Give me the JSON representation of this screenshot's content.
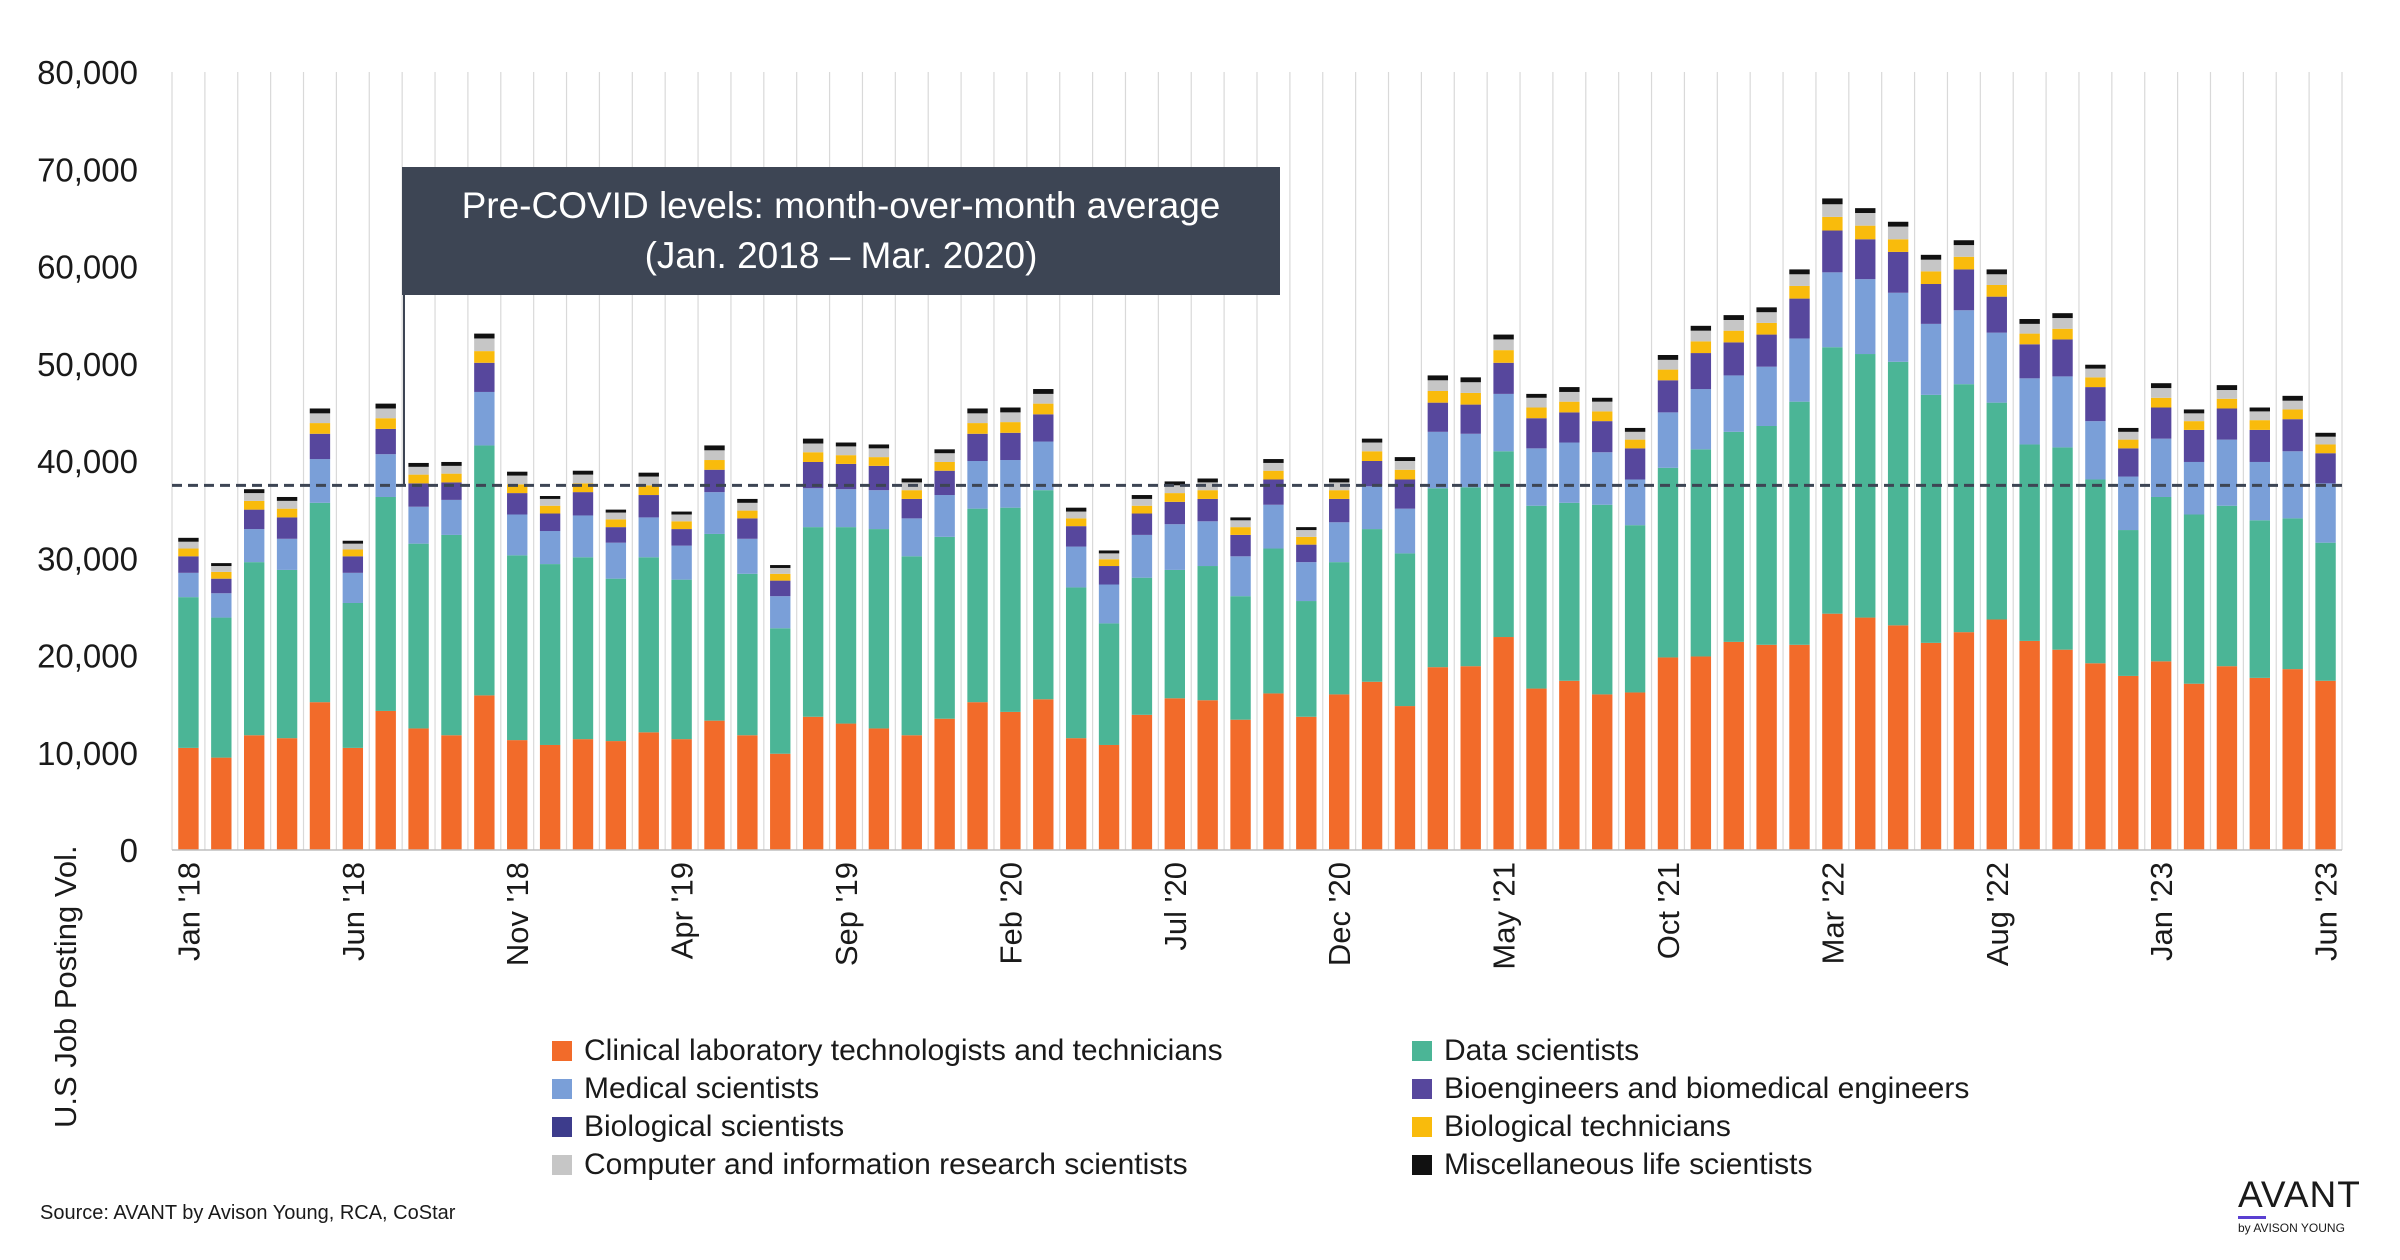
{
  "chart_data": {
    "type": "bar",
    "stacked": true,
    "ylabel": "U.S Job Posting Vol.",
    "ylim": [
      0,
      80000
    ],
    "yticks": [
      "0",
      "10,000",
      "20,000",
      "30,000",
      "40,000",
      "50,000",
      "60,000",
      "70,000",
      "80,000"
    ],
    "grid": "vertical",
    "legend_position": "bottom",
    "categories": [
      "Jan '18",
      "Feb '18",
      "Mar '18",
      "Apr '18",
      "May '18",
      "Jun '18",
      "Jul '18",
      "Aug '18",
      "Sep '18",
      "Oct '18",
      "Nov '18",
      "Dec '18",
      "Jan '19",
      "Feb '19",
      "Mar '19",
      "Apr '19",
      "May '19",
      "Jun '19",
      "Jul '19",
      "Aug '19",
      "Sep '19",
      "Oct '19",
      "Nov '19",
      "Dec '19",
      "Jan '20",
      "Feb '20",
      "Mar '20",
      "Apr '20",
      "May '20",
      "Jun '20",
      "Jul '20",
      "Aug '20",
      "Sep '20",
      "Oct '20",
      "Nov '20",
      "Dec '20",
      "Jan '21",
      "Feb '21",
      "Mar '21",
      "Apr '21",
      "May '21",
      "Jun '21",
      "Jul '21",
      "Aug '21",
      "Sep '21",
      "Oct '21",
      "Nov '21",
      "Dec '21",
      "Jan '22",
      "Feb '22",
      "Mar '22",
      "Apr '22",
      "May '22",
      "Jun '22",
      "Jul '22",
      "Aug '22",
      "Sep '22",
      "Oct '22",
      "Nov '22",
      "Dec '22",
      "Jan '23",
      "Feb '23",
      "Mar '23",
      "Apr '23",
      "May '23",
      "Jun '23"
    ],
    "tick_labels": [
      {
        "index": 0,
        "label": "Jan '18"
      },
      {
        "index": 5,
        "label": "Jun '18"
      },
      {
        "index": 10,
        "label": "Nov '18"
      },
      {
        "index": 15,
        "label": "Apr '19"
      },
      {
        "index": 20,
        "label": "Sep '19"
      },
      {
        "index": 25,
        "label": "Feb '20"
      },
      {
        "index": 30,
        "label": "Jul '20"
      },
      {
        "index": 35,
        "label": "Dec '20"
      },
      {
        "index": 40,
        "label": "May '21"
      },
      {
        "index": 45,
        "label": "Oct '21"
      },
      {
        "index": 50,
        "label": "Mar '22"
      },
      {
        "index": 55,
        "label": "Aug '22"
      },
      {
        "index": 60,
        "label": "Jan '23"
      },
      {
        "index": 65,
        "label": "Jun '23"
      }
    ],
    "reference_line": {
      "value": 37500
    },
    "annotation": {
      "lines": [
        "Pre-COVID levels: month-over-month average",
        "(Jan. 2018 – Mar. 2020)"
      ]
    },
    "series": [
      {
        "name": "Clinical laboratory technologists and technicians",
        "color": "#f26b2a",
        "values": [
          10500,
          9500,
          11800,
          11500,
          15200,
          10500,
          14300,
          12500,
          11800,
          15900,
          11300,
          10800,
          11400,
          11200,
          12100,
          11400,
          13300,
          11800,
          9900,
          13700,
          13000,
          12500,
          11800,
          13500,
          15200,
          14200,
          15500,
          11500,
          10800,
          13900,
          15600,
          15400,
          13400,
          16100,
          13700,
          16000,
          17300,
          14800,
          18800,
          18900,
          21900,
          16600,
          17400,
          16000,
          16200,
          19800,
          19900,
          21400,
          21100,
          21100,
          24300,
          23900,
          23100,
          21300,
          22400,
          23700,
          21500,
          20600,
          19200,
          17900,
          19400,
          17100,
          18900,
          17700,
          18600,
          17400
        ]
      },
      {
        "name": "Data scientists",
        "color": "#4bb596",
        "values": [
          15500,
          14400,
          17800,
          17300,
          20500,
          14900,
          22000,
          19000,
          20600,
          25700,
          19000,
          18600,
          18700,
          16700,
          18000,
          16400,
          19200,
          16600,
          12900,
          19500,
          20200,
          20500,
          18400,
          18700,
          19900,
          21000,
          21500,
          15500,
          12500,
          14100,
          13200,
          13800,
          12700,
          14900,
          11900,
          13600,
          15700,
          15700,
          18400,
          18400,
          19100,
          18800,
          18300,
          19500,
          17200,
          19500,
          21300,
          21600,
          22500,
          25000,
          27400,
          27100,
          27100,
          25500,
          25500,
          22300,
          20200,
          20800,
          18900,
          15000,
          16900,
          17400,
          16500,
          16200,
          15500,
          14200
        ]
      },
      {
        "name": "Medical scientists",
        "color": "#7a9fd8",
        "values": [
          2500,
          2500,
          3400,
          3200,
          4500,
          3100,
          4400,
          3800,
          3600,
          5500,
          4200,
          3400,
          4300,
          3700,
          4100,
          3500,
          4300,
          3600,
          3300,
          4000,
          3900,
          4000,
          3900,
          4300,
          4900,
          4900,
          5000,
          4200,
          4000,
          4400,
          4700,
          4600,
          4100,
          4500,
          4000,
          4100,
          4400,
          4600,
          5800,
          5500,
          5900,
          5900,
          6200,
          5400,
          4700,
          5700,
          6200,
          5800,
          6100,
          6500,
          7700,
          7700,
          7100,
          7300,
          7600,
          7200,
          6800,
          7300,
          6000,
          5500,
          6000,
          5400,
          6800,
          6000,
          6900,
          6100
        ]
      },
      {
        "name": "Bioengineers and biomedical engineers",
        "color": "#57479d",
        "values": [
          1700,
          1500,
          2000,
          2200,
          2600,
          1700,
          2600,
          2400,
          1800,
          3000,
          2200,
          1800,
          2400,
          1600,
          2300,
          1700,
          2300,
          2100,
          1600,
          2700,
          2600,
          2500,
          2000,
          2500,
          2800,
          2800,
          2800,
          2100,
          1900,
          2200,
          2300,
          2300,
          2200,
          2600,
          1800,
          2400,
          2600,
          3000,
          3000,
          3000,
          3200,
          3100,
          3100,
          3200,
          3200,
          3300,
          3700,
          3400,
          3300,
          4100,
          4300,
          4100,
          4200,
          4100,
          4200,
          3700,
          3500,
          3800,
          3500,
          2900,
          3200,
          3300,
          3200,
          3300,
          3300,
          3100
        ]
      },
      {
        "name": "Biological scientists",
        "color": "#3d3c8c",
        "values": [
          0,
          0,
          0,
          0,
          0,
          0,
          0,
          0,
          0,
          0,
          0,
          0,
          0,
          0,
          0,
          0,
          0,
          0,
          0,
          0,
          0,
          0,
          0,
          0,
          0,
          0,
          0,
          0,
          0,
          0,
          0,
          0,
          0,
          0,
          0,
          0,
          0,
          0,
          0,
          0,
          0,
          0,
          0,
          0,
          0,
          0,
          0,
          0,
          0,
          0,
          0,
          0,
          0,
          0,
          0,
          0,
          0,
          0,
          0,
          0,
          0,
          0,
          0,
          0,
          0,
          0
        ]
      },
      {
        "name": "Biological technicians",
        "color": "#f9bb0c",
        "values": [
          800,
          700,
          900,
          900,
          1100,
          700,
          1100,
          900,
          900,
          1200,
          900,
          800,
          900,
          800,
          1000,
          800,
          1000,
          800,
          700,
          1000,
          900,
          900,
          900,
          900,
          1100,
          1100,
          1100,
          800,
          700,
          800,
          900,
          900,
          800,
          900,
          800,
          900,
          1000,
          1000,
          1200,
          1200,
          1300,
          1100,
          1100,
          1000,
          900,
          1100,
          1200,
          1200,
          1200,
          1300,
          1400,
          1400,
          1300,
          1300,
          1300,
          1200,
          1100,
          1100,
          1000,
          900,
          1000,
          900,
          1000,
          1000,
          1000,
          900
        ]
      },
      {
        "name": "Computer and information research scientists",
        "color": "#c6c6c6",
        "values": [
          700,
          600,
          800,
          800,
          1000,
          600,
          1000,
          800,
          800,
          1300,
          900,
          700,
          900,
          700,
          900,
          700,
          1000,
          800,
          600,
          900,
          900,
          900,
          800,
          900,
          1000,
          1000,
          1000,
          700,
          600,
          700,
          800,
          800,
          700,
          800,
          700,
          800,
          900,
          900,
          1100,
          1100,
          1100,
          1000,
          1000,
          1000,
          800,
          1000,
          1100,
          1100,
          1100,
          1200,
          1300,
          1300,
          1300,
          1200,
          1200,
          1100,
          1000,
          1100,
          900,
          800,
          1000,
          800,
          900,
          900,
          900,
          800
        ]
      },
      {
        "name": "Miscellaneous life scientists",
        "color": "#111111",
        "values": [
          400,
          300,
          400,
          400,
          500,
          300,
          500,
          400,
          400,
          500,
          400,
          300,
          400,
          300,
          400,
          300,
          500,
          400,
          300,
          500,
          400,
          400,
          400,
          400,
          500,
          500,
          500,
          400,
          300,
          400,
          400,
          400,
          300,
          400,
          300,
          400,
          400,
          400,
          500,
          500,
          500,
          400,
          500,
          400,
          400,
          500,
          500,
          500,
          500,
          500,
          600,
          500,
          500,
          500,
          500,
          500,
          500,
          500,
          400,
          400,
          500,
          400,
          500,
          400,
          500,
          400
        ]
      }
    ],
    "legend_order": [
      "Clinical laboratory technologists and technicians",
      "Data scientists",
      "Medical scientists",
      "Bioengineers and biomedical engineers",
      "Biological scientists",
      "Biological technicians",
      "Computer and information research scientists",
      "Miscellaneous life scientists"
    ]
  },
  "source": "Source: AVANT by Avison Young, RCA, CoStar",
  "logo": {
    "main": "AVANT",
    "sub": "by AVISON YOUNG",
    "accent_color": "#5a3fd1"
  }
}
